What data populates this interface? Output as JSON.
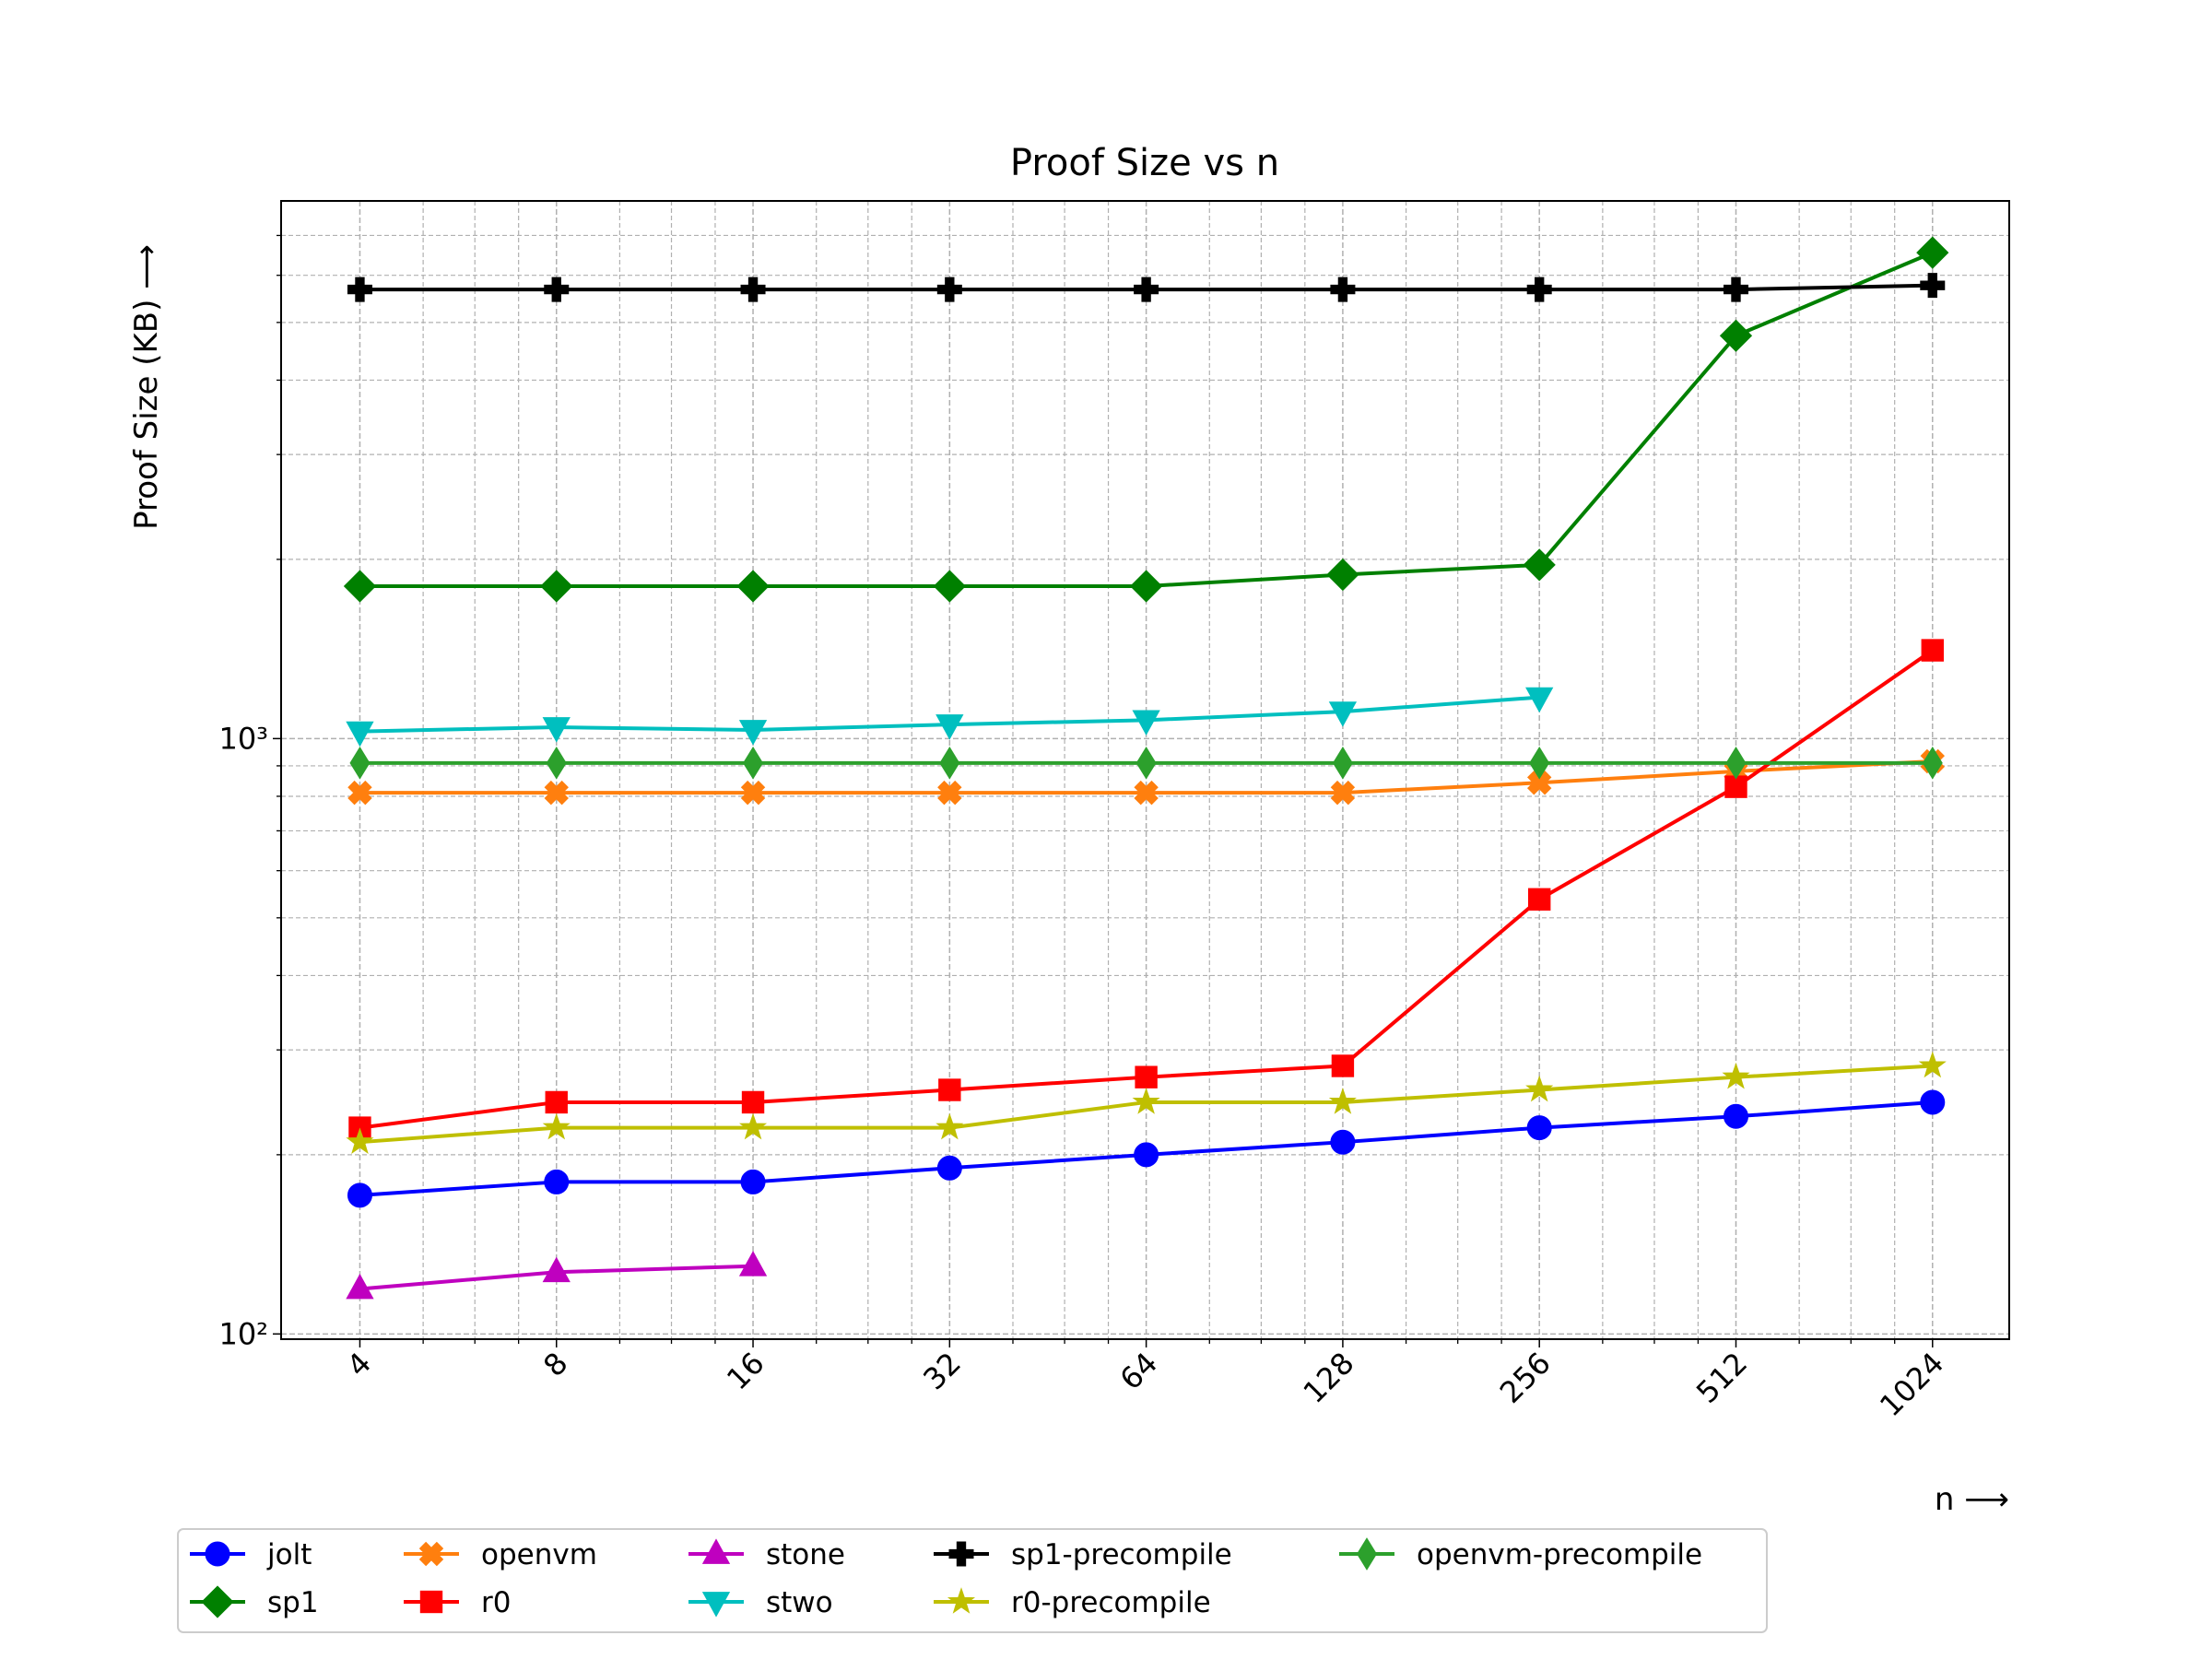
{
  "chart_data": {
    "type": "line",
    "title": "Proof Size vs n",
    "xlabel": "n ⟶",
    "ylabel": "Proof Size (KB) ⟶",
    "x": [
      4,
      8,
      16,
      32,
      64,
      128,
      256,
      512,
      1024
    ],
    "xscale": "log",
    "xbase": 2,
    "yscale": "log",
    "ybase": 10,
    "grid": true,
    "legend": "lower center outside",
    "xlim": [
      3.03,
      1342
    ],
    "ylim": [
      98,
      8000
    ],
    "xticks": [
      4,
      8,
      16,
      32,
      64,
      128,
      256,
      512,
      1024
    ],
    "xminor": [
      5,
      6,
      7,
      10,
      12,
      14,
      20,
      24,
      28,
      40,
      48,
      56,
      80,
      96,
      112,
      160,
      192,
      224,
      320,
      384,
      448,
      640,
      768,
      896
    ],
    "yticks": [
      {
        "value": 100,
        "label": "10²"
      },
      {
        "value": 1000,
        "label": "10³"
      }
    ],
    "yminor": [
      200,
      300,
      400,
      500,
      600,
      700,
      800,
      900,
      2000,
      3000,
      4000,
      5000,
      6000,
      7000
    ],
    "series": [
      {
        "name": "jolt",
        "color": "#0000ff",
        "marker": "circle",
        "values": [
          171,
          180,
          180,
          190,
          200,
          210,
          222,
          232,
          245
        ]
      },
      {
        "name": "sp1",
        "color": "#008000",
        "marker": "diamond",
        "values": [
          1803,
          1803,
          1803,
          1803,
          1803,
          1885,
          1958,
          4750,
          6550
        ]
      },
      {
        "name": "openvm",
        "color": "#ff7f0e",
        "marker": "x",
        "values": [
          811,
          811,
          811,
          811,
          811,
          811,
          843,
          881,
          916
        ]
      },
      {
        "name": "r0",
        "color": "#ff0000",
        "marker": "square",
        "values": [
          222,
          245,
          245,
          257,
          270,
          282,
          537,
          830,
          1407
        ]
      },
      {
        "name": "stone",
        "color": "#bf00bf",
        "marker": "triangle-up",
        "values": [
          119,
          127,
          130,
          null,
          null,
          null,
          null,
          null,
          null
        ]
      },
      {
        "name": "stwo",
        "color": "#00bfbf",
        "marker": "triangle-down",
        "values": [
          1028,
          1045,
          1034,
          1056,
          1074,
          1110,
          1173,
          null,
          null
        ]
      },
      {
        "name": "sp1-precompile",
        "color": "#000000",
        "marker": "plus",
        "values": [
          5680,
          5680,
          5680,
          5680,
          5680,
          5680,
          5680,
          5680,
          5770
        ]
      },
      {
        "name": "r0-precompile",
        "color": "#bfbf00",
        "marker": "star",
        "values": [
          210,
          222,
          222,
          222,
          245,
          245,
          257,
          270,
          282
        ]
      },
      {
        "name": "openvm-precompile",
        "color": "#2ca02c",
        "marker": "thin-diamond",
        "values": [
          910,
          910,
          910,
          910,
          910,
          910,
          910,
          910,
          910
        ]
      }
    ]
  }
}
